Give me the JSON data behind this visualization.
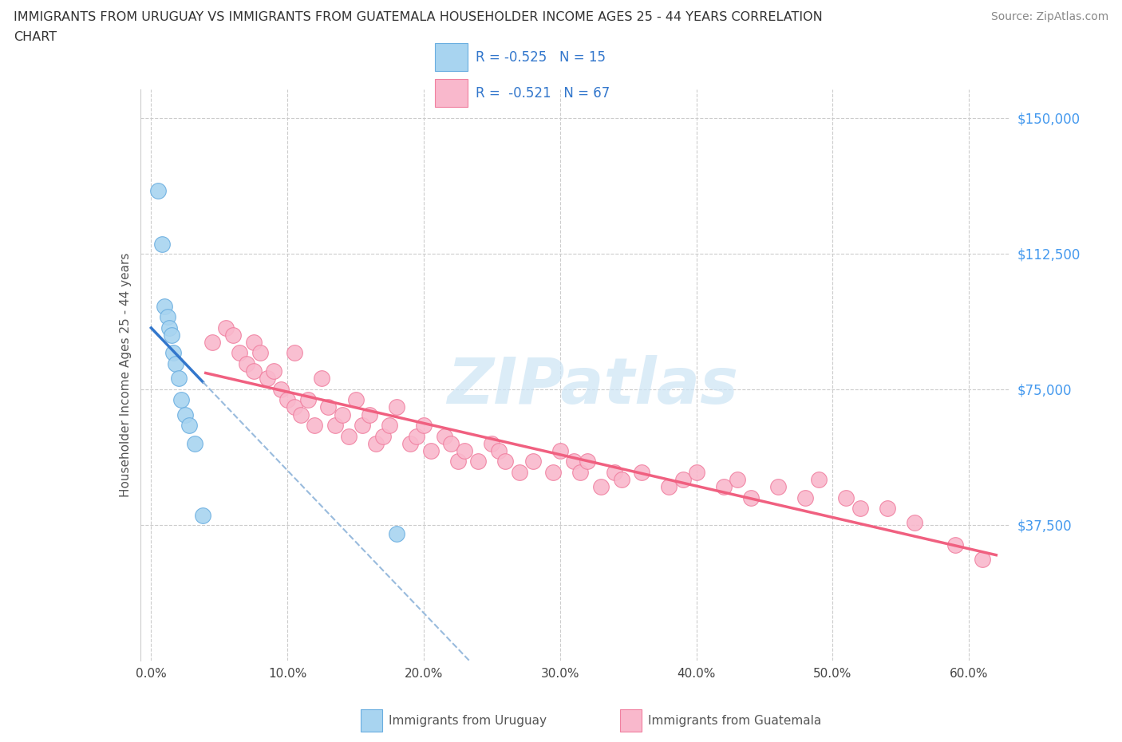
{
  "title_line1": "IMMIGRANTS FROM URUGUAY VS IMMIGRANTS FROM GUATEMALA HOUSEHOLDER INCOME AGES 25 - 44 YEARS CORRELATION",
  "title_line2": "CHART",
  "source": "Source: ZipAtlas.com",
  "ylabel": "Householder Income Ages 25 - 44 years",
  "xtick_labels": [
    "0.0%",
    "10.0%",
    "20.0%",
    "30.0%",
    "40.0%",
    "50.0%",
    "60.0%"
  ],
  "xtick_values": [
    0.0,
    0.1,
    0.2,
    0.3,
    0.4,
    0.5,
    0.6
  ],
  "ytick_labels": [
    "$150,000",
    "$112,500",
    "$75,000",
    "$37,500"
  ],
  "ytick_values": [
    150000,
    112500,
    75000,
    37500
  ],
  "right_ytick_labels": [
    "$150,000",
    "$112,500",
    "$75,000",
    "$37,500"
  ],
  "ylim_min": 0,
  "ylim_max": 158000,
  "xlim_min": -0.008,
  "xlim_max": 0.63,
  "uruguay_color": "#a8d4f0",
  "uruguay_edge": "#6aaee0",
  "guatemala_color": "#f9b8cc",
  "guatemala_edge": "#f080a0",
  "line_uruguay_color": "#3377cc",
  "line_uruguay_dashed_color": "#99bbdd",
  "line_guatemala_color": "#f06080",
  "watermark_color": "#cce4f5",
  "legend_R_color": "#3377cc",
  "uruguay_x": [
    0.005,
    0.008,
    0.01,
    0.012,
    0.013,
    0.015,
    0.016,
    0.018,
    0.02,
    0.022,
    0.025,
    0.028,
    0.032,
    0.038,
    0.18
  ],
  "uruguay_y": [
    130000,
    115000,
    98000,
    95000,
    92000,
    90000,
    85000,
    82000,
    78000,
    72000,
    68000,
    65000,
    60000,
    40000,
    35000
  ],
  "guatemala_x": [
    0.045,
    0.055,
    0.06,
    0.065,
    0.07,
    0.075,
    0.075,
    0.08,
    0.085,
    0.09,
    0.095,
    0.1,
    0.105,
    0.105,
    0.11,
    0.115,
    0.12,
    0.125,
    0.13,
    0.135,
    0.14,
    0.145,
    0.15,
    0.155,
    0.16,
    0.165,
    0.17,
    0.175,
    0.18,
    0.19,
    0.195,
    0.2,
    0.205,
    0.215,
    0.22,
    0.225,
    0.23,
    0.24,
    0.25,
    0.255,
    0.26,
    0.27,
    0.28,
    0.295,
    0.3,
    0.31,
    0.315,
    0.32,
    0.33,
    0.34,
    0.345,
    0.36,
    0.38,
    0.39,
    0.4,
    0.42,
    0.43,
    0.44,
    0.46,
    0.48,
    0.49,
    0.51,
    0.52,
    0.54,
    0.56,
    0.59,
    0.61
  ],
  "guatemala_y": [
    88000,
    92000,
    90000,
    85000,
    82000,
    88000,
    80000,
    85000,
    78000,
    80000,
    75000,
    72000,
    70000,
    85000,
    68000,
    72000,
    65000,
    78000,
    70000,
    65000,
    68000,
    62000,
    72000,
    65000,
    68000,
    60000,
    62000,
    65000,
    70000,
    60000,
    62000,
    65000,
    58000,
    62000,
    60000,
    55000,
    58000,
    55000,
    60000,
    58000,
    55000,
    52000,
    55000,
    52000,
    58000,
    55000,
    52000,
    55000,
    48000,
    52000,
    50000,
    52000,
    48000,
    50000,
    52000,
    48000,
    50000,
    45000,
    48000,
    45000,
    50000,
    45000,
    42000,
    42000,
    38000,
    32000,
    28000
  ],
  "legend_uru_label": "R = -0.525   N = 15",
  "legend_guat_label": "R =  -0.521   N = 67",
  "bottom_label_uru": "Immigrants from Uruguay",
  "bottom_label_guat": "Immigrants from Guatemala"
}
